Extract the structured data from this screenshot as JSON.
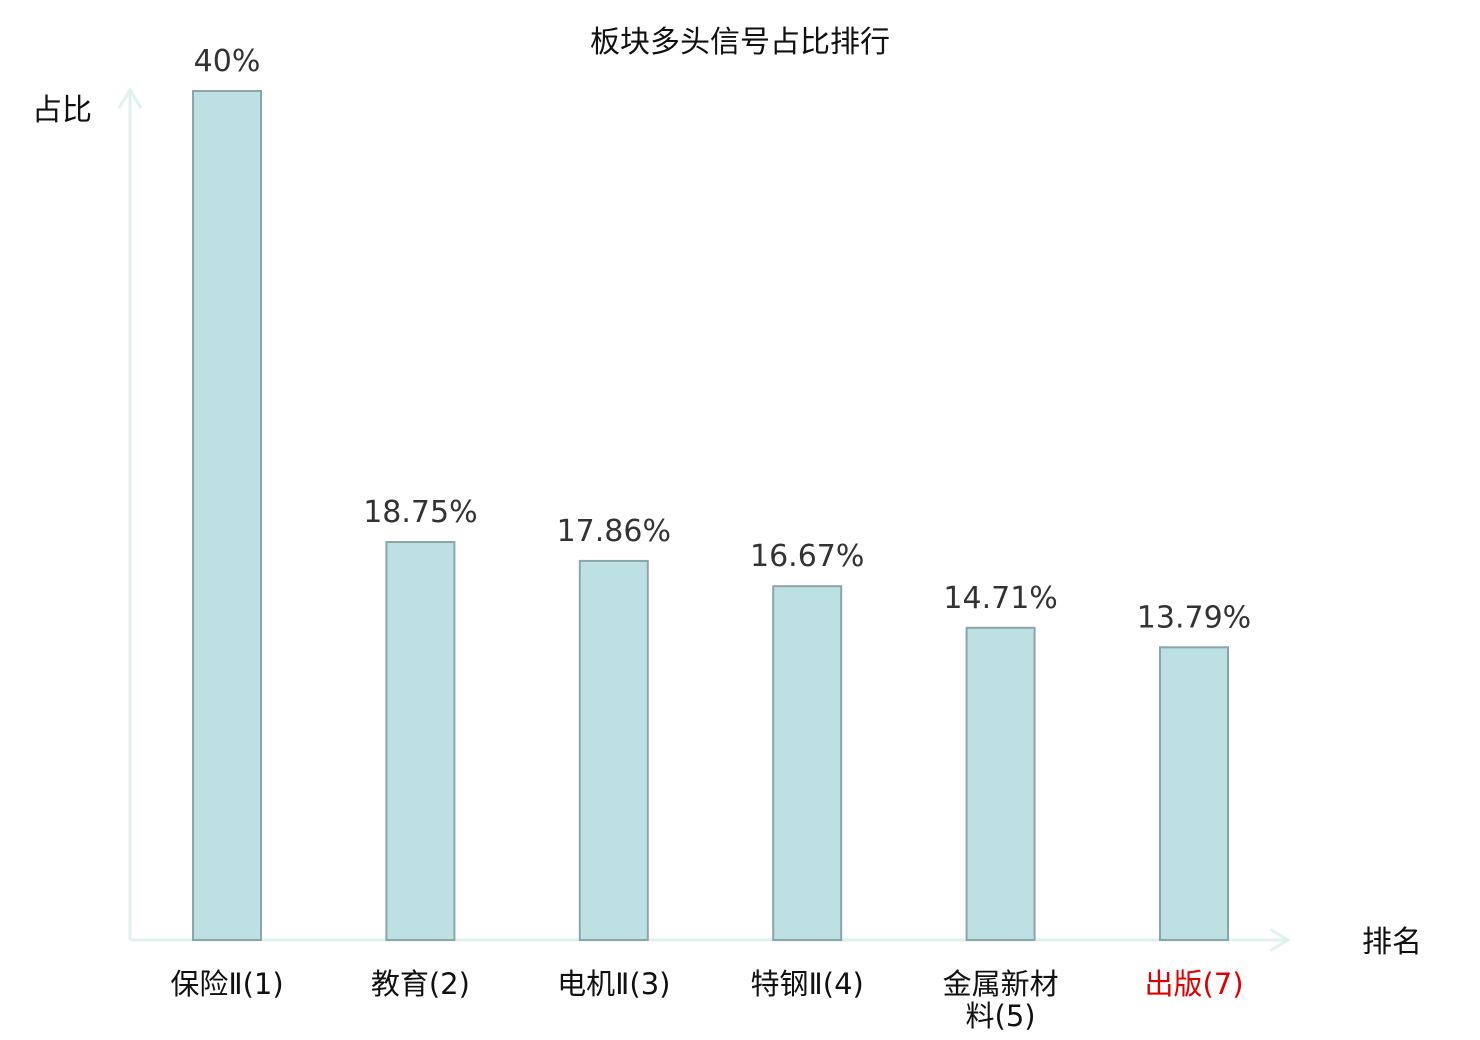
{
  "chart_data": {
    "type": "bar",
    "title": "板块多头信号占比排行",
    "ylabel": "占比",
    "xlabel": "排名",
    "ylim": [
      0,
      40
    ],
    "grid": false,
    "categories": [
      "保险Ⅱ(1)",
      "教育(2)",
      "电机Ⅱ(3)",
      "特钢Ⅱ(4)",
      "金属新材料(5)",
      "出版(7)"
    ],
    "values": [
      40,
      18.75,
      17.86,
      16.67,
      14.71,
      13.79
    ],
    "value_labels": [
      "40%",
      "18.75%",
      "17.86%",
      "16.67%",
      "14.71%",
      "13.79%"
    ],
    "colors": {
      "bar_fill": "#bde0e3",
      "bar_stroke": "#8aa6aa",
      "axis": "#dff2ef",
      "label_default": "#111111",
      "label_highlight": "#e00000"
    },
    "highlight_category": "出版(7)"
  }
}
